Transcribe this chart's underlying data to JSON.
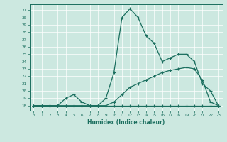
{
  "bg_color": "#cce8e0",
  "grid_color": "#aad4cc",
  "line_color": "#1a6e5e",
  "xlabel": "Humidex (Indice chaleur)",
  "xlim": [
    -0.5,
    23.5
  ],
  "ylim": [
    17.3,
    31.8
  ],
  "xticks": [
    0,
    1,
    2,
    3,
    4,
    5,
    6,
    7,
    8,
    9,
    10,
    11,
    12,
    13,
    14,
    15,
    16,
    17,
    18,
    19,
    20,
    21,
    22,
    23
  ],
  "yticks": [
    18,
    19,
    20,
    21,
    22,
    23,
    24,
    25,
    26,
    27,
    28,
    29,
    30,
    31
  ],
  "curve_flat_x": [
    0,
    1,
    2,
    3,
    4,
    5,
    6,
    7,
    8,
    9,
    10,
    11,
    12,
    13,
    14,
    15,
    16,
    17,
    18,
    19,
    20,
    21,
    22,
    23
  ],
  "curve_flat_y": [
    18,
    18,
    18,
    18,
    18,
    18,
    18,
    18,
    18,
    18,
    18,
    18,
    18,
    18,
    18,
    18,
    18,
    18,
    18,
    18,
    18,
    18,
    18,
    18
  ],
  "curve_main_x": [
    0,
    1,
    2,
    3,
    4,
    5,
    6,
    7,
    8,
    9,
    10,
    11,
    12,
    13,
    14,
    15,
    16,
    17,
    18,
    19,
    20,
    21,
    22,
    23
  ],
  "curve_main_y": [
    18,
    18,
    18,
    18,
    19,
    19.5,
    18.5,
    18,
    18,
    19,
    22.5,
    30,
    31.2,
    30,
    27.5,
    26.5,
    24,
    24.5,
    25,
    25,
    24,
    21,
    20,
    18
  ],
  "curve_diag_x": [
    0,
    1,
    2,
    3,
    4,
    5,
    6,
    7,
    8,
    9,
    10,
    11,
    12,
    13,
    14,
    15,
    16,
    17,
    18,
    19,
    20,
    21,
    22,
    23
  ],
  "curve_diag_y": [
    18,
    18,
    18,
    18,
    18,
    18,
    18,
    18,
    18,
    18,
    18.5,
    19.5,
    20.5,
    21,
    21.5,
    22,
    22.5,
    22.8,
    23,
    23.2,
    23,
    21.5,
    18.5,
    18
  ]
}
